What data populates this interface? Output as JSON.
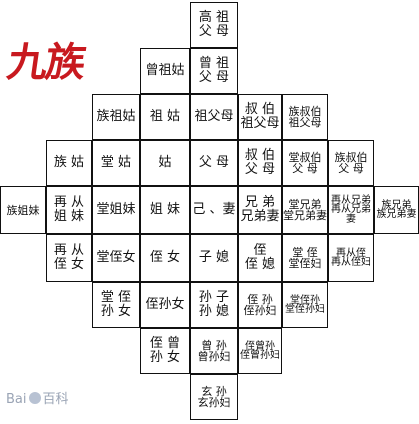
{
  "title": "九族",
  "watermark": {
    "brand": "Bai",
    "brand_cn": "百科"
  },
  "cells": [
    "高 祖\n父 母",
    "曾祖姑",
    "曾 祖\n父 母",
    "族祖姑",
    "祖 姑",
    "祖父母",
    "叔 伯\n祖父母",
    "族叔伯\n祖父母",
    "族 姑",
    "堂 姑",
    "姑",
    "父 母",
    "叔 伯\n父 母",
    "堂叔伯\n父 母",
    "族叔伯\n父 母",
    "族姐妹",
    "再 从\n姐 妹",
    "堂姐妹",
    "姐 妹",
    "己 、妻",
    "兄 弟\n兄弟妻",
    "堂兄弟\n堂兄弟妻",
    "再从兄弟\n再从兄弟妻",
    "族兄弟\n族兄弟妻",
    "再 从\n侄 女",
    "堂侄女",
    "侄 女",
    "子 媳",
    "侄\n侄 媳",
    "堂 侄\n堂侄妇",
    "再从侄\n再从侄妇",
    "堂 侄\n孙 女",
    "侄孙女",
    "孙 子\n孙 媳",
    "侄 孙\n侄孙妇",
    "堂侄孙\n堂侄孙妇",
    "侄 曾\n孙 女",
    "曾 孙\n曾孙妇",
    "侄曾孙\n侄曾孙妇",
    "玄 孙\n玄孙妇"
  ]
}
